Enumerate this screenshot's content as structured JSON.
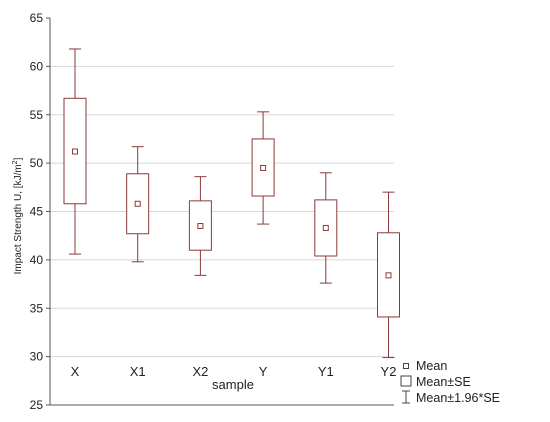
{
  "chart_data": {
    "type": "box",
    "xlabel": "sample",
    "ylabel": {
      "main": "Impact Strength U, [kJ/m",
      "sup": "2",
      "end": "]"
    },
    "ylim": [
      25,
      65
    ],
    "yticks": [
      25,
      30,
      35,
      40,
      45,
      50,
      55,
      60,
      65
    ],
    "grid": true,
    "legend_position": "bottom-right",
    "categories": [
      "X",
      "X1",
      "X2",
      "Y",
      "Y1",
      "Y2"
    ],
    "series": [
      {
        "category": "X",
        "mean": 51.2,
        "se_low": 45.8,
        "se_high": 56.7,
        "ci_low": 40.6,
        "ci_high": 61.8
      },
      {
        "category": "X1",
        "mean": 45.8,
        "se_low": 42.7,
        "se_high": 48.9,
        "ci_low": 39.8,
        "ci_high": 51.7
      },
      {
        "category": "X2",
        "mean": 43.5,
        "se_low": 41.0,
        "se_high": 46.1,
        "ci_low": 38.4,
        "ci_high": 48.6
      },
      {
        "category": "Y",
        "mean": 49.5,
        "se_low": 46.6,
        "se_high": 52.5,
        "ci_low": 43.7,
        "ci_high": 55.3
      },
      {
        "category": "Y1",
        "mean": 43.3,
        "se_low": 40.4,
        "se_high": 46.2,
        "ci_low": 37.6,
        "ci_high": 49.0
      },
      {
        "category": "Y2",
        "mean": 38.4,
        "se_low": 34.1,
        "se_high": 42.8,
        "ci_low": 29.9,
        "ci_high": 47.0
      }
    ],
    "legend": [
      {
        "symbol": "point",
        "label": "Mean"
      },
      {
        "symbol": "box",
        "label": "Mean±SE"
      },
      {
        "symbol": "whisker",
        "label": "Mean±1.96*SE"
      }
    ],
    "colors": {
      "box_stroke": "#8a3a3a",
      "axis": "#555555",
      "grid": "#d8d8d8",
      "text": "#222222"
    }
  }
}
